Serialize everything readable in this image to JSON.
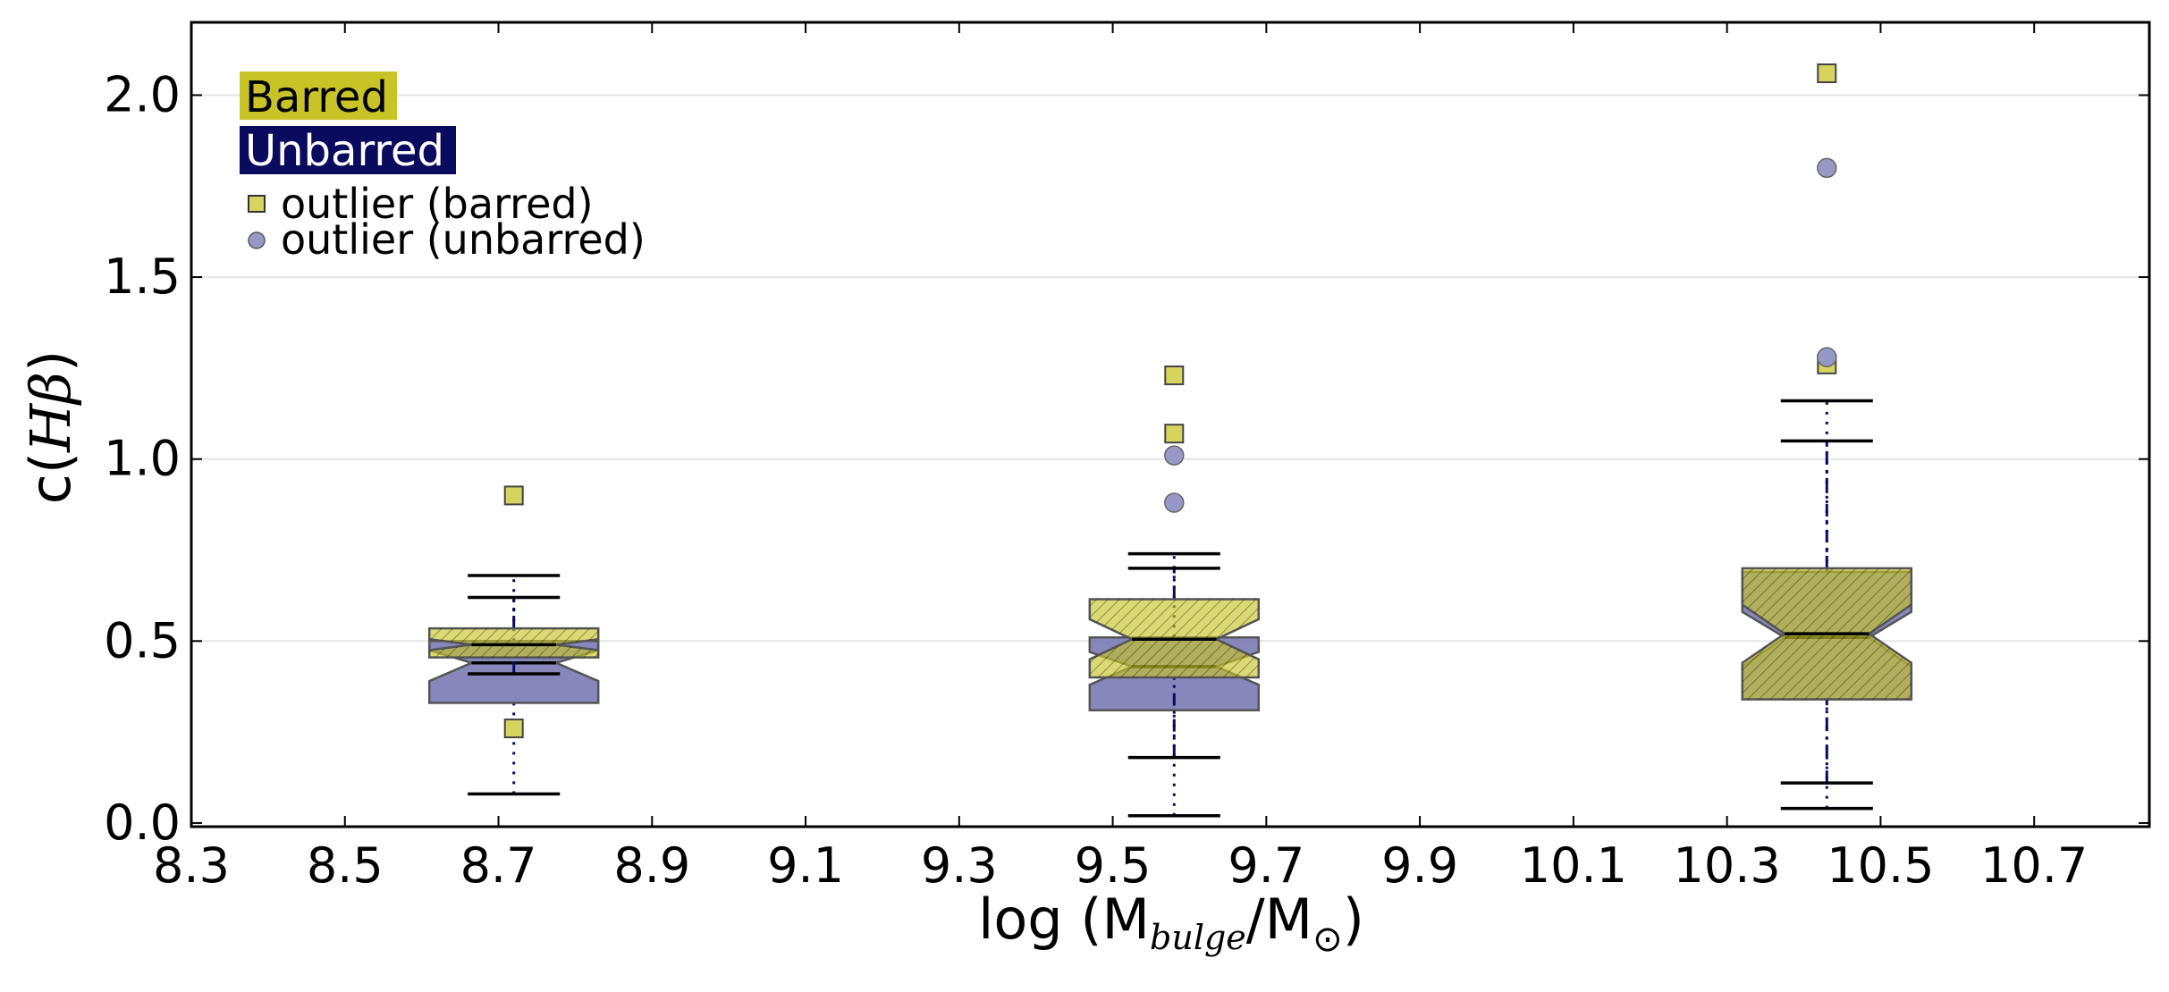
{
  "chart_data": {
    "type": "box",
    "xlabel": {
      "prefix": "log (M",
      "sub1": "bulge",
      "mid": "/M",
      "sub2": "⊙",
      "suffix": ")"
    },
    "ylabel": {
      "prefix": "c(",
      "math": "Hβ",
      "suffix": ")"
    },
    "xlim": [
      8.3,
      10.85
    ],
    "ylim": [
      -0.01,
      2.2
    ],
    "xticks": [
      8.3,
      8.5,
      8.7,
      8.9,
      9.1,
      9.3,
      9.5,
      9.7,
      9.9,
      10.1,
      10.3,
      10.5,
      10.7
    ],
    "xtick_labels": [
      "8.3",
      "8.5",
      "8.7",
      "8.9",
      "9.1",
      "9.3",
      "9.5",
      "9.7",
      "9.9",
      "10.1",
      "10.3",
      "10.5",
      "10.7"
    ],
    "yticks": [
      0.0,
      0.5,
      1.0,
      1.5,
      2.0
    ],
    "ytick_labels": [
      "0.0",
      "0.5",
      "1.0",
      "1.5",
      "2.0"
    ],
    "grid": "horizontal",
    "legend_position": "top-left",
    "legend": {
      "barred": "Barred",
      "unbarred": "Unbarred",
      "outlier_barred": "outlier (barred)",
      "outlier_unbarred": "outlier (unbarred)"
    },
    "colors": {
      "barred_fill": "#c8c428",
      "barred_outlier": "#d6d45e",
      "unbarred_fill": "#7a7ab4",
      "unbarred_outlier": "#9898c6",
      "unbarred_legend_bg": "#0a0a5e",
      "whisker_line": "#0a0a5e",
      "overlap_fill": "#5a5a64"
    },
    "positions": [
      8.72,
      9.58,
      10.43
    ],
    "series": [
      {
        "name": "Barred",
        "boxes": [
          {
            "whislo": 0.41,
            "q1": 0.455,
            "notch_lo": 0.475,
            "med": 0.49,
            "notch_hi": 0.505,
            "q3": 0.535,
            "whishi": 0.62,
            "fliers": [
              0.9,
              0.26
            ]
          },
          {
            "whislo": 0.18,
            "q1": 0.4,
            "notch_lo": 0.45,
            "med": 0.505,
            "notch_hi": 0.56,
            "q3": 0.615,
            "whishi": 0.7,
            "fliers": [
              1.23,
              1.07
            ]
          },
          {
            "whislo": 0.11,
            "q1": 0.34,
            "notch_lo": 0.44,
            "med": 0.52,
            "notch_hi": 0.6,
            "q3": 0.7,
            "whishi": 1.05,
            "fliers": [
              2.06,
              1.26
            ]
          }
        ]
      },
      {
        "name": "Unbarred",
        "boxes": [
          {
            "whislo": 0.08,
            "q1": 0.33,
            "notch_lo": 0.39,
            "med": 0.44,
            "notch_hi": 0.475,
            "q3": 0.5,
            "whishi": 0.68,
            "fliers": []
          },
          {
            "whislo": 0.02,
            "q1": 0.31,
            "notch_lo": 0.38,
            "med": 0.43,
            "notch_hi": 0.47,
            "q3": 0.51,
            "whishi": 0.74,
            "fliers": [
              1.01,
              0.88
            ]
          },
          {
            "whislo": 0.04,
            "q1": 0.34,
            "notch_lo": 0.43,
            "med": 0.51,
            "notch_hi": 0.58,
            "q3": 0.69,
            "whishi": 1.16,
            "fliers": [
              1.8,
              1.28
            ]
          }
        ]
      }
    ]
  }
}
